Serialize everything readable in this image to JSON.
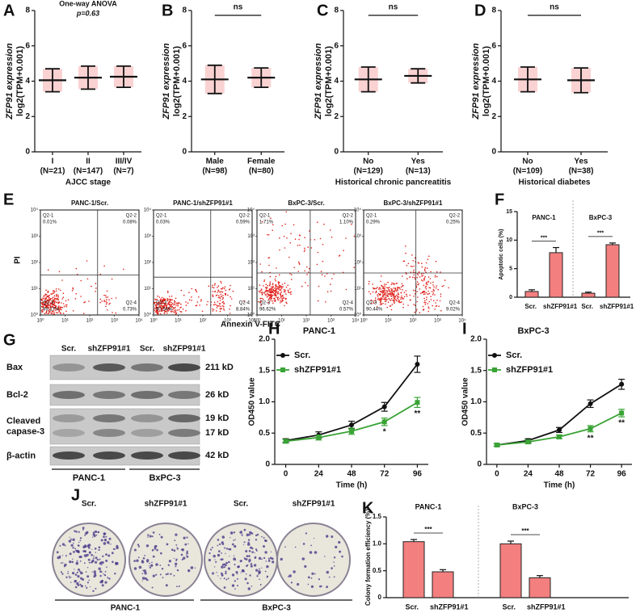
{
  "chart_data": [
    {
      "type": "dot",
      "panel": "A",
      "test": "One-way ANOVA",
      "stat": "p=0.63",
      "ylabel": "ZFP91 expression",
      "ylabel2": "log2(TPM+0.001)",
      "xlabel": "AJCC stage",
      "categories": [
        "I",
        "II",
        "III/IV"
      ],
      "category_notes": [
        "(N=21)",
        "(N=147)",
        "(N=7)"
      ],
      "values": [
        4.05,
        4.2,
        4.25
      ],
      "errors": [
        0.65,
        0.65,
        0.6
      ],
      "ylim": [
        0,
        8
      ],
      "yticks": [
        0,
        2,
        4,
        6,
        8
      ]
    },
    {
      "type": "dot",
      "panel": "B",
      "annotation": "ns",
      "ylabel": "ZFP91 expression",
      "ylabel2": "log2(TPM+0.001)",
      "categories": [
        "Male",
        "Female"
      ],
      "category_notes": [
        "(N=98)",
        "(N=80)"
      ],
      "values": [
        4.1,
        4.2
      ],
      "errors": [
        0.8,
        0.55
      ],
      "ylim": [
        0,
        8
      ],
      "yticks": [
        0,
        2,
        4,
        6,
        8
      ]
    },
    {
      "type": "dot",
      "panel": "C",
      "annotation": "ns",
      "ylabel": "ZFP91 expression",
      "ylabel2": "log2(TPM+0.001)",
      "xlabel": "Historical chronic pancreatitis",
      "categories": [
        "No",
        "Yes"
      ],
      "category_notes": [
        "(N=129)",
        "(N=13)"
      ],
      "values": [
        4.1,
        4.3
      ],
      "errors": [
        0.7,
        0.4
      ],
      "ylim": [
        0,
        8
      ],
      "yticks": [
        0,
        2,
        4,
        6,
        8
      ]
    },
    {
      "type": "dot",
      "panel": "D",
      "annotation": "ns",
      "ylabel": "ZFP91 expression",
      "ylabel2": "log2(TPM+0.001)",
      "xlabel": "Historical diabetes",
      "categories": [
        "No",
        "Yes"
      ],
      "category_notes": [
        "(N=109)",
        "(N=38)"
      ],
      "values": [
        4.1,
        4.05
      ],
      "errors": [
        0.7,
        0.7
      ],
      "ylim": [
        0,
        8
      ],
      "yticks": [
        0,
        2,
        4,
        6,
        8
      ]
    },
    {
      "type": "flow",
      "panel": "E",
      "ylabel": "PI",
      "xlabel": "Annexin V-FITC",
      "log": true,
      "xlim": [
        1,
        10000
      ],
      "ylim": [
        1,
        10000
      ],
      "xticks": [
        {
          "value": 1,
          "label": "10⁰"
        },
        {
          "value": 10,
          "label": "10¹"
        },
        {
          "value": 100,
          "label": "10²"
        },
        {
          "value": 1000,
          "label": "10³"
        },
        {
          "value": 10000,
          "label": "10⁴"
        }
      ],
      "yticks": [
        {
          "value": 1,
          "label": "10⁰"
        },
        {
          "value": 10,
          "label": "10¹"
        },
        {
          "value": 100,
          "label": "10²"
        },
        {
          "value": 1000,
          "label": "10³"
        },
        {
          "value": 10000,
          "label": "10⁴"
        }
      ],
      "plots": [
        {
          "title": "PANC-1/Scr.",
          "quadrants": [
            "Q2-1",
            "Q2-2",
            "Q2-3",
            "Q2-4"
          ],
          "values": [
            0.01,
            0.08,
            99.17,
            0.73
          ],
          "value_labels": [
            "0.01%",
            "0.08%",
            "99.17%",
            "0.73%"
          ]
        },
        {
          "title": "PANC-1/shZFP91#1",
          "quadrants": [
            "Q2-1",
            "Q2-2",
            "Q2-3",
            "Q2-4"
          ],
          "values": [
            0.03,
            0.59,
            90.54,
            8.84
          ],
          "value_labels": [
            "0.03%",
            "0.59%",
            "90.54%",
            "8.84%"
          ]
        },
        {
          "title": "BxPC-3/Scr.",
          "quadrants": [
            "Q2-1",
            "Q2-2",
            "Q2-3",
            "Q2-4"
          ],
          "values": [
            1.71,
            1.1,
            96.62,
            0.57
          ],
          "value_labels": [
            "1.71%",
            "1.10%",
            "96.62%",
            "0.57%"
          ]
        },
        {
          "title": "BxPC-3/shZFP91#1",
          "quadrants": [
            "Q2-1",
            "Q2-2",
            "Q2-3",
            "Q2-4"
          ],
          "values": [
            0.29,
            0.25,
            90.44,
            9.02
          ],
          "value_labels": [
            "0.29%",
            "0.25%",
            "90.44%",
            "9.02%"
          ]
        }
      ]
    },
    {
      "type": "bar",
      "panel": "F",
      "ylabel": "Apoptotic cells (%)",
      "groups": [
        "PANC-1",
        "BxPC-3"
      ],
      "significance": [
        "***",
        "***"
      ],
      "categories": [
        "Scr.",
        "shZFP91#1",
        "Scr.",
        "shZFP91#1"
      ],
      "values": [
        1.0,
        7.8,
        0.7,
        9.2
      ],
      "errors": [
        0.3,
        0.9,
        0.2,
        0.3
      ],
      "color": "#f47f7f",
      "ylim": [
        0,
        15
      ],
      "yticks": [
        0,
        5,
        10,
        15
      ]
    },
    {
      "type": "line",
      "panel": "H",
      "title": "PANC-1",
      "xlabel": "Time (h)",
      "ylabel": "OD450 value",
      "x": [
        0,
        24,
        48,
        72,
        96
      ],
      "xlim": [
        -8,
        104
      ],
      "xticks": [
        0,
        24,
        48,
        72,
        96
      ],
      "ylim": [
        0,
        2
      ],
      "yticks": [
        0,
        0.5,
        {
          "value": 1,
          "label": "1.0"
        },
        1.5,
        {
          "value": 2,
          "label": "2.0"
        }
      ],
      "series": [
        {
          "name": "Scr.",
          "color": "#111111",
          "values": [
            0.38,
            0.47,
            0.63,
            0.92,
            1.6
          ],
          "errors": [
            0.03,
            0.05,
            0.06,
            0.07,
            0.13
          ]
        },
        {
          "name": "shZFP91#1",
          "color": "#3aa335",
          "values": [
            0.37,
            0.43,
            0.53,
            0.68,
            0.99
          ],
          "errors": [
            0.03,
            0.04,
            0.05,
            0.06,
            0.08
          ],
          "significance": [
            null,
            null,
            null,
            "*",
            "**"
          ]
        }
      ]
    },
    {
      "type": "line",
      "panel": "I",
      "title": "BxPC-3",
      "xlabel": "Time (h)",
      "ylabel": "OD450 value",
      "x": [
        0,
        24,
        48,
        72,
        96
      ],
      "xlim": [
        -8,
        104
      ],
      "xticks": [
        0,
        24,
        48,
        72,
        96
      ],
      "ylim": [
        0,
        2
      ],
      "yticks": [
        0,
        0.5,
        {
          "value": 1,
          "label": "1.0"
        },
        1.5,
        {
          "value": 2,
          "label": "2.0"
        }
      ],
      "series": [
        {
          "name": "Scr.",
          "color": "#111111",
          "values": [
            0.31,
            0.38,
            0.55,
            0.97,
            1.28
          ],
          "errors": [
            0.02,
            0.03,
            0.04,
            0.06,
            0.08
          ]
        },
        {
          "name": "shZFP91#1",
          "color": "#3aa335",
          "values": [
            0.31,
            0.36,
            0.44,
            0.57,
            0.82
          ],
          "errors": [
            0.02,
            0.03,
            0.03,
            0.05,
            0.06
          ],
          "significance": [
            null,
            null,
            null,
            "**",
            "**"
          ]
        }
      ]
    },
    {
      "type": "bar",
      "panel": "K",
      "ylabel": "Colony formation efficiency (%)",
      "groups": [
        "PANC-1",
        "BxPC-3"
      ],
      "significance": [
        "***",
        "***"
      ],
      "categories": [
        "Scr.",
        "shZFP91#1",
        "Scr.",
        "shZFP91#1"
      ],
      "values": [
        1.04,
        0.48,
        1.0,
        0.37
      ],
      "errors": [
        0.04,
        0.04,
        0.05,
        0.04
      ],
      "color": "#f47f7f",
      "ylim": [
        0,
        1.5
      ],
      "yticks": [
        0,
        0.5,
        {
          "value": 1,
          "label": "1.0"
        },
        1.5
      ]
    }
  ],
  "blot": {
    "panel": "G",
    "columns": [
      "Scr.",
      "shZFP91#1",
      "Scr.",
      "shZFP91#1"
    ],
    "rows": [
      {
        "label": [
          "Bax"
        ],
        "kd": [
          "211 kD"
        ]
      },
      {
        "label": [
          "Bcl-2"
        ],
        "kd": [
          "26 kD"
        ]
      },
      {
        "label": [
          "Cleaved",
          "capase-3"
        ],
        "kd": [
          "19 kD",
          "17 kD"
        ]
      },
      {
        "label": [
          "β-actin"
        ],
        "kd": [
          "42 kD"
        ]
      }
    ],
    "cell_lines": [
      "PANC-1",
      "BxPC-3"
    ]
  },
  "plates": {
    "panel": "J",
    "columns": [
      "Scr.",
      "shZFP91#1",
      "Scr.",
      "shZFP91#1"
    ],
    "cell_lines": [
      "PANC-1",
      "BxPC-3"
    ]
  }
}
